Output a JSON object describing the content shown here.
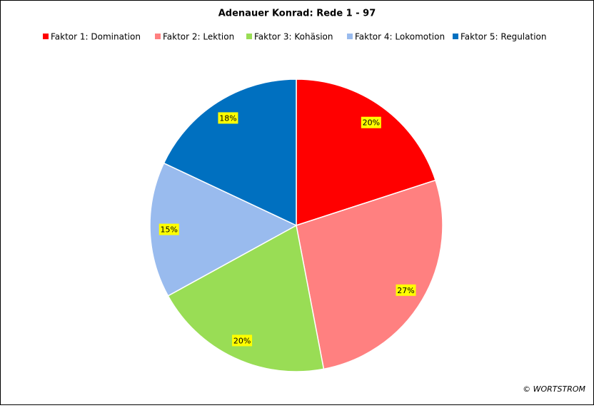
{
  "chart_data": {
    "type": "pie",
    "title": "Adenauer Konrad: Rede 1 - 97",
    "categories": [
      "Faktor 1: Domination",
      "Faktor 2: Lektion",
      "Faktor 3: Kohäsion",
      "Faktor 4: Lokomotion",
      "Faktor 5: Regulation"
    ],
    "values": [
      20,
      27,
      20,
      15,
      18
    ],
    "value_labels": [
      "20%",
      "27%",
      "20%",
      "15%",
      "18%"
    ],
    "colors": [
      "#ff0000",
      "#ff8080",
      "#99dd55",
      "#99bbee",
      "#0070c0"
    ],
    "legend": "top",
    "annotation": "© WORTSTROM"
  }
}
